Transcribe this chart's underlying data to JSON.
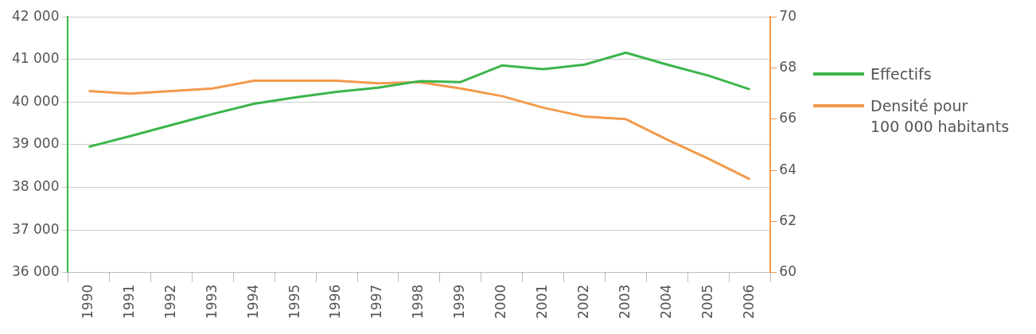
{
  "chart_data": {
    "type": "line",
    "categories": [
      "1990",
      "1991",
      "1992",
      "1993",
      "1994",
      "1995",
      "1996",
      "1997",
      "1998",
      "1999",
      "2000",
      "2001",
      "2002",
      "2003",
      "2004",
      "2005",
      "2006"
    ],
    "series": [
      {
        "name": "Effectifs",
        "color": "#3cb54a",
        "values": [
          38950,
          39200,
          39460,
          39720,
          39960,
          40110,
          40240,
          40340,
          40490,
          40470,
          40860,
          40770,
          40880,
          41160,
          40880,
          40620,
          40300
        ]
      },
      {
        "name": "Densité pour 100 000 habitants",
        "color": "#f39a4c",
        "axis": "y2",
        "values": [
          67.1,
          67.0,
          67.1,
          67.2,
          67.5,
          67.5,
          67.5,
          67.4,
          67.45,
          67.2,
          66.9,
          66.45,
          66.1,
          66.0,
          65.2,
          64.45,
          63.65
        ]
      }
    ],
    "ylim": [
      36000,
      42000
    ],
    "yticks": [
      {
        "value": 36000,
        "label": "36 000"
      },
      {
        "value": 37000,
        "label": "37 000"
      },
      {
        "value": 38000,
        "label": "38 000"
      },
      {
        "value": 39000,
        "label": "39 000"
      },
      {
        "value": 40000,
        "label": "40 000"
      },
      {
        "value": 41000,
        "label": "41 000"
      },
      {
        "value": 42000,
        "label": "42 000"
      }
    ],
    "y2lim": [
      60,
      70
    ],
    "y2ticks": [
      60,
      62,
      64,
      66,
      68,
      70
    ],
    "grid": "y",
    "legend": "right",
    "marker": "none",
    "line_style": "solid"
  }
}
